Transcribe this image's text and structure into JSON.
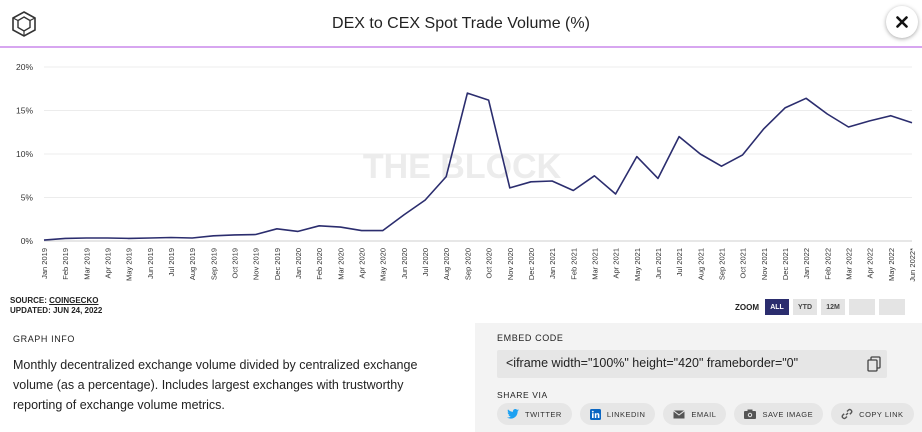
{
  "header": {
    "title": "DEX to CEX Spot Trade Volume (%)"
  },
  "icons": {
    "logo": "cube-logo",
    "close": "close-icon",
    "copy": "copy-icon",
    "twitter": "twitter-icon",
    "linkedin": "linkedin-icon",
    "email": "email-icon",
    "save": "camera-icon",
    "link": "link-icon"
  },
  "colors": {
    "line": "#2b2d6e",
    "accent": "#d7a6f0",
    "zoom_active": "#2b2d6e",
    "twitter": "#1da1f2",
    "linkedin": "#0a66c2"
  },
  "watermark": "THE BLOCK",
  "source": {
    "label": "SOURCE:",
    "name": "COINGECKO",
    "updated": "UPDATED: JUN 24, 2022"
  },
  "zoom": {
    "label": "ZOOM",
    "buttons": [
      "ALL",
      "YTD",
      "12M",
      "",
      ""
    ],
    "active": "ALL"
  },
  "graph_info": {
    "title": "GRAPH INFO",
    "text": "Monthly decentralized exchange volume divided by centralized exchange volume (as a percentage). Includes largest exchanges with trustworthy reporting of exchange volume metrics."
  },
  "embed": {
    "title": "EMBED CODE",
    "code": "<iframe width=\"100%\" height=\"420\" frameborder=\"0\""
  },
  "share": {
    "title": "SHARE VIA",
    "buttons": [
      "TWITTER",
      "LINKEDIN",
      "EMAIL",
      "SAVE IMAGE",
      "COPY LINK"
    ]
  },
  "chart_data": {
    "type": "line",
    "title": "DEX to CEX Spot Trade Volume (%)",
    "ylim": [
      0,
      20
    ],
    "yticks": [
      "0%",
      "5%",
      "10%",
      "15%",
      "20%"
    ],
    "grid": true,
    "x": [
      "Jan 2019",
      "Feb 2019",
      "Mar 2019",
      "Apr 2019",
      "May 2019",
      "Jun 2019",
      "Jul 2019",
      "Aug 2019",
      "Sep 2019",
      "Oct 2019",
      "Nov 2019",
      "Dec 2019",
      "Jan 2020",
      "Feb 2020",
      "Mar 2020",
      "Apr 2020",
      "May 2020",
      "Jun 2020",
      "Jul 2020",
      "Aug 2020",
      "Sep 2020",
      "Oct 2020",
      "Nov 2020",
      "Dec 2020",
      "Jan 2021",
      "Feb 2021",
      "Mar 2021",
      "Apr 2021",
      "May 2021",
      "Jun 2021",
      "Jul 2021",
      "Aug 2021",
      "Sep 2021",
      "Oct 2021",
      "Nov 2021",
      "Dec 2021",
      "Jan 2022",
      "Feb 2022",
      "Mar 2022",
      "Apr 2022",
      "May 2022",
      "Jun 2022*"
    ],
    "series": [
      {
        "values": [
          0.1,
          0.3,
          0.35,
          0.35,
          0.3,
          0.35,
          0.4,
          0.35,
          0.6,
          0.7,
          0.75,
          1.4,
          1.1,
          1.75,
          1.6,
          1.2,
          1.2,
          3.0,
          4.7,
          7.4,
          17.0,
          16.2,
          6.1,
          6.8,
          6.9,
          5.8,
          7.5,
          5.4,
          9.7,
          7.2,
          12.0,
          10.0,
          8.6,
          9.9,
          12.9,
          15.3,
          16.4,
          14.6,
          13.1,
          13.8,
          14.4,
          13.6
        ]
      }
    ]
  }
}
